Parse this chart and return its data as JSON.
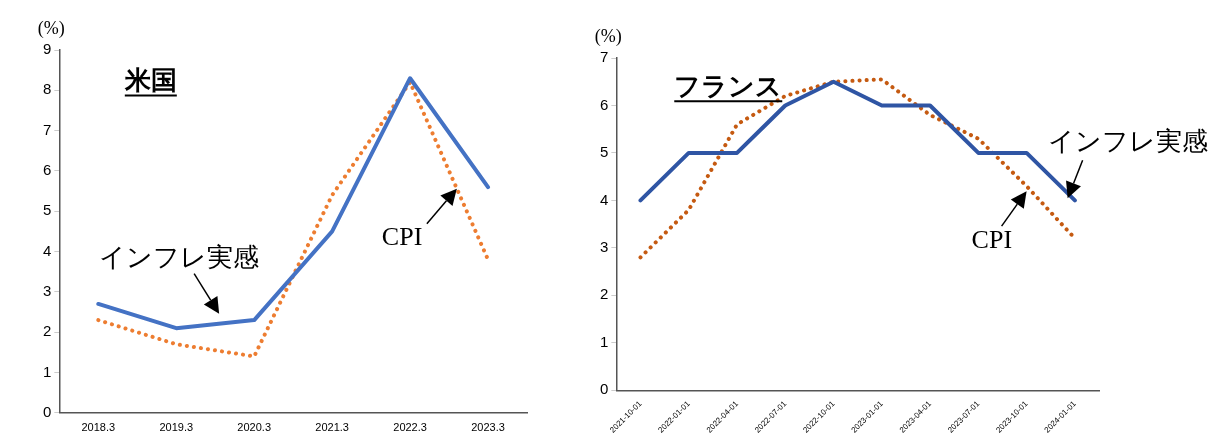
{
  "chart_data": [
    {
      "type": "line",
      "title": "米国",
      "ylabel": "(%)",
      "categories": [
        "2018.3",
        "2019.3",
        "2020.3",
        "2021.3",
        "2022.3",
        "2023.3"
      ],
      "series": [
        {
          "name": "インフレ実感",
          "color": "#4472c4",
          "values": [
            2.7,
            2.1,
            2.3,
            4.5,
            8.3,
            5.6
          ],
          "line_style": "solid"
        },
        {
          "name": "CPI",
          "color": "#ed7d31",
          "values": [
            2.3,
            1.7,
            1.4,
            5.4,
            8.2,
            3.8
          ],
          "line_style": "dotted"
        }
      ],
      "ylim": [
        0,
        9
      ],
      "yticks": [
        0,
        1,
        2,
        3,
        4,
        5,
        6,
        7,
        8,
        9
      ],
      "grid": false,
      "legend": false,
      "marker": "none"
    },
    {
      "type": "line",
      "title": "フランス",
      "ylabel": "(%)",
      "categories": [
        "2021-10-01",
        "2022-01-01",
        "2022-04-01",
        "2022-07-01",
        "2022-10-01",
        "2023-01-01",
        "2023-04-01",
        "2023-07-01",
        "2023-10-01",
        "2024-01-01"
      ],
      "series": [
        {
          "name": "インフレ実感",
          "color": "#2f55a4",
          "values": [
            4,
            5,
            5,
            6,
            6.5,
            6,
            6,
            5,
            5,
            4
          ],
          "line_style": "solid"
        },
        {
          "name": "CPI",
          "color": "#c55a11",
          "values": [
            2.8,
            3.8,
            5.6,
            6.2,
            6.5,
            6.55,
            5.8,
            5.3,
            4.3,
            3.2
          ],
          "line_style": "dotted"
        }
      ],
      "ylim": [
        0,
        7
      ],
      "yticks": [
        0,
        1,
        2,
        3,
        4,
        5,
        6,
        7
      ],
      "grid": false,
      "legend": false,
      "marker": "none"
    }
  ]
}
